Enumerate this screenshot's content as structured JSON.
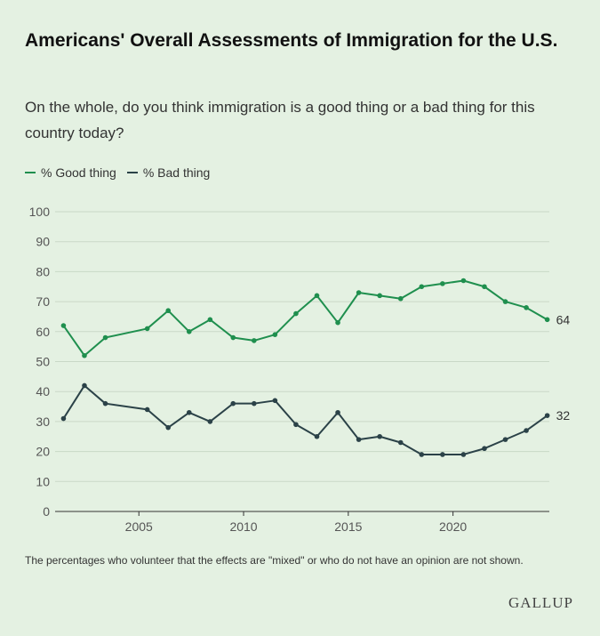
{
  "header": {
    "title": "Americans' Overall Assessments of Immigration for the U.S.",
    "subtitle": "On the whole, do you think immigration is a good thing or a bad thing for this country today?"
  },
  "legend": {
    "good_label": "% Good thing",
    "bad_label": "% Bad thing"
  },
  "footnote": "The percentages who volunteer that the effects are \"mixed\" or who do not have an opinion are not shown.",
  "brand": "GALLUP",
  "colors": {
    "good": "#1f8f4e",
    "bad": "#2b4248",
    "grid": "#c9d8c7",
    "axis_text": "#555555"
  },
  "chart_data": {
    "type": "line",
    "title": "Americans' Overall Assessments of Immigration for the U.S.",
    "xlabel": "",
    "ylabel": "",
    "ylim": [
      0,
      100
    ],
    "yticks": [
      0,
      10,
      20,
      30,
      40,
      50,
      60,
      70,
      80,
      90,
      100
    ],
    "xlim": [
      2001,
      2024.6
    ],
    "xticks": [
      2005,
      2010,
      2015,
      2020
    ],
    "grid": true,
    "legend_position": "top-left",
    "series": [
      {
        "name": "% Good thing",
        "end_label": "64",
        "points": [
          [
            2001.4,
            62
          ],
          [
            2002.4,
            52
          ],
          [
            2003.4,
            58
          ],
          [
            2005.4,
            61
          ],
          [
            2006.4,
            67
          ],
          [
            2007.4,
            60
          ],
          [
            2008.4,
            64
          ],
          [
            2009.5,
            58
          ],
          [
            2010.5,
            57
          ],
          [
            2011.5,
            59
          ],
          [
            2012.5,
            66
          ],
          [
            2013.5,
            72
          ],
          [
            2014.5,
            63
          ],
          [
            2015.5,
            73
          ],
          [
            2016.5,
            72
          ],
          [
            2017.5,
            71
          ],
          [
            2018.5,
            75
          ],
          [
            2019.5,
            76
          ],
          [
            2020.5,
            77
          ],
          [
            2021.5,
            75
          ],
          [
            2022.5,
            70
          ],
          [
            2023.5,
            68
          ],
          [
            2024.5,
            64
          ]
        ]
      },
      {
        "name": "% Bad thing",
        "end_label": "32",
        "points": [
          [
            2001.4,
            31
          ],
          [
            2002.4,
            42
          ],
          [
            2003.4,
            36
          ],
          [
            2005.4,
            34
          ],
          [
            2006.4,
            28
          ],
          [
            2007.4,
            33
          ],
          [
            2008.4,
            30
          ],
          [
            2009.5,
            36
          ],
          [
            2010.5,
            36
          ],
          [
            2011.5,
            37
          ],
          [
            2012.5,
            29
          ],
          [
            2013.5,
            25
          ],
          [
            2014.5,
            33
          ],
          [
            2015.5,
            24
          ],
          [
            2016.5,
            25
          ],
          [
            2017.5,
            23
          ],
          [
            2018.5,
            19
          ],
          [
            2019.5,
            19
          ],
          [
            2020.5,
            19
          ],
          [
            2021.5,
            21
          ],
          [
            2022.5,
            24
          ],
          [
            2023.5,
            27
          ],
          [
            2024.5,
            32
          ]
        ]
      }
    ]
  }
}
